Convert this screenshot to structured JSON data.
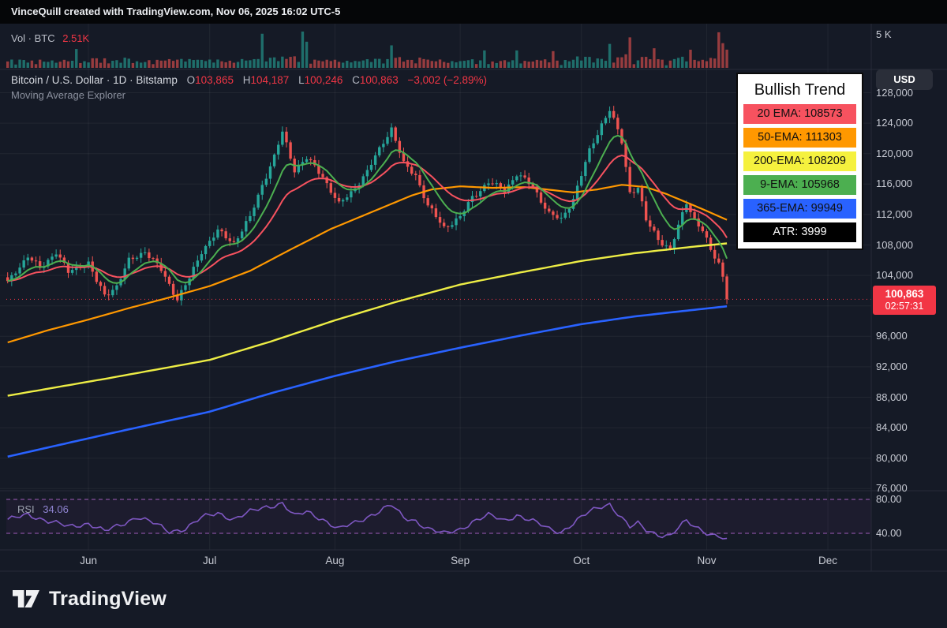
{
  "topbar": {
    "text": "VinceQuill created with TradingView.com, Nov 06, 2025 16:02 UTC-5"
  },
  "symbol_line": {
    "name": "Bitcoin / U.S. Dollar",
    "sep": "·",
    "interval": "1D",
    "exchange": "Bitstamp",
    "o_label": "O",
    "o": "103,865",
    "h_label": "H",
    "h": "104,187",
    "l_label": "L",
    "l": "100,246",
    "c_label": "C",
    "c": "100,863",
    "change": "−3,002 (−2.89%)"
  },
  "indicator_line": "Moving Average Explorer",
  "volume_pane": {
    "label": "Vol · BTC",
    "value": "2.51K",
    "axis_label": "5 K"
  },
  "rsi_pane": {
    "label": "RSI",
    "value": "34.06",
    "upper_label": "80.00",
    "lower_label": "40.00",
    "upper": 80,
    "lower": 40
  },
  "legend": {
    "title": "Bullish Trend",
    "rows": [
      {
        "label": "20 EMA: 108573",
        "bg": "#f7525f",
        "fg": "#101010"
      },
      {
        "label": "50-EMA: 111303",
        "bg": "#ff9800",
        "fg": "#101010"
      },
      {
        "label": "200-EMA: 108209",
        "bg": "#f5f13e",
        "fg": "#101010"
      },
      {
        "label": "9-EMA: 105968",
        "bg": "#4caf50",
        "fg": "#101010"
      },
      {
        "label": "365-EMA: 99949",
        "bg": "#2962ff",
        "fg": "#101010"
      },
      {
        "label": "ATR: 3999",
        "bg": "#000000",
        "fg": "#ffffff"
      }
    ]
  },
  "price_axis": {
    "currency": "USD",
    "labels": [
      {
        "text": "128,000",
        "price": 128000
      },
      {
        "text": "124,000",
        "price": 124000
      },
      {
        "text": "120,000",
        "price": 120000
      },
      {
        "text": "116,000",
        "price": 116000
      },
      {
        "text": "112,000",
        "price": 112000
      },
      {
        "text": "108,000",
        "price": 108000
      },
      {
        "text": "104,000",
        "price": 104000
      },
      {
        "text": "96,000",
        "price": 96000
      },
      {
        "text": "92,000",
        "price": 92000
      },
      {
        "text": "88,000",
        "price": 88000
      },
      {
        "text": "84,000",
        "price": 84000
      },
      {
        "text": "80,000",
        "price": 80000
      },
      {
        "text": "76,000",
        "price": 76000
      }
    ],
    "badge": {
      "price": "100,863",
      "countdown": "02:57:31"
    }
  },
  "time_axis": {
    "months": [
      {
        "label": "Jun",
        "day": 20
      },
      {
        "label": "Jul",
        "day": 50
      },
      {
        "label": "Aug",
        "day": 81
      },
      {
        "label": "Sep",
        "day": 112
      },
      {
        "label": "Oct",
        "day": 142
      },
      {
        "label": "Nov",
        "day": 173
      },
      {
        "label": "Dec",
        "day": 203
      }
    ]
  },
  "logo": {
    "text": "TradingView"
  },
  "colors": {
    "up": "#26a69a",
    "down": "#ef5350",
    "vol_up": "rgba(38,166,154,0.6)",
    "vol_down": "rgba(239,83,80,0.6)",
    "ema9": "#4caf50",
    "ema20": "#f7525f",
    "ema50": "#ff9800",
    "ema200": "#eded45",
    "ema365": "#2962ff",
    "rsi": "#7e57c2",
    "rsi_band": "#b064c9",
    "rsi_fill": "rgba(171,71,188,0.06)",
    "grid": "rgba(255,255,255,0.055)",
    "separator": "#262b38",
    "current_price_line": "#f23645",
    "badge": "#f23645"
  },
  "chart_data": {
    "type": "candlestick",
    "symbol": "Bitcoin / U.S. Dollar",
    "interval": "1D",
    "num_days": 179,
    "last_candle": {
      "open": 103865,
      "high": 104187,
      "low": 100246,
      "close": 100863
    },
    "close_anchors": [
      [
        0,
        103000
      ],
      [
        2,
        104600
      ],
      [
        5,
        106500
      ],
      [
        8,
        104900
      ],
      [
        12,
        107100
      ],
      [
        15,
        104400
      ],
      [
        18,
        105300
      ],
      [
        20,
        105600
      ],
      [
        22,
        103200
      ],
      [
        24,
        101400
      ],
      [
        27,
        102600
      ],
      [
        30,
        105900
      ],
      [
        34,
        107200
      ],
      [
        38,
        104700
      ],
      [
        42,
        100900
      ],
      [
        45,
        103600
      ],
      [
        48,
        107200
      ],
      [
        52,
        109800
      ],
      [
        56,
        108300
      ],
      [
        60,
        111600
      ],
      [
        63,
        115900
      ],
      [
        66,
        119600
      ],
      [
        68,
        122800
      ],
      [
        71,
        117900
      ],
      [
        74,
        119400
      ],
      [
        78,
        117000
      ],
      [
        82,
        113300
      ],
      [
        85,
        114900
      ],
      [
        89,
        117600
      ],
      [
        93,
        121600
      ],
      [
        95,
        123300
      ],
      [
        98,
        118600
      ],
      [
        101,
        117200
      ],
      [
        104,
        113100
      ],
      [
        108,
        110300
      ],
      [
        112,
        111600
      ],
      [
        115,
        114300
      ],
      [
        119,
        116200
      ],
      [
        123,
        115200
      ],
      [
        126,
        117300
      ],
      [
        130,
        115700
      ],
      [
        134,
        112100
      ],
      [
        137,
        111300
      ],
      [
        140,
        114100
      ],
      [
        144,
        120300
      ],
      [
        147,
        123900
      ],
      [
        149,
        125800
      ],
      [
        152,
        121500
      ],
      [
        154,
        114900
      ],
      [
        156,
        115600
      ],
      [
        158,
        111200
      ],
      [
        161,
        108800
      ],
      [
        164,
        107400
      ],
      [
        166,
        110400
      ],
      [
        168,
        113600
      ],
      [
        170,
        111400
      ],
      [
        172,
        109900
      ],
      [
        174,
        107200
      ],
      [
        176,
        105600
      ],
      [
        177,
        103900
      ],
      [
        178,
        100863
      ]
    ],
    "ema_final_values": {
      "ema9": 105968,
      "ema20": 108573,
      "ema50": 111303,
      "ema200": 108209,
      "ema365": 99949,
      "atr": 3999
    },
    "ema50_anchors": [
      [
        0,
        95200
      ],
      [
        10,
        96800
      ],
      [
        20,
        98200
      ],
      [
        30,
        99700
      ],
      [
        40,
        101100
      ],
      [
        50,
        102600
      ],
      [
        60,
        104600
      ],
      [
        70,
        107400
      ],
      [
        80,
        110100
      ],
      [
        90,
        112300
      ],
      [
        95,
        113400
      ],
      [
        100,
        114500
      ],
      [
        105,
        115300
      ],
      [
        112,
        115700
      ],
      [
        120,
        115500
      ],
      [
        128,
        115600
      ],
      [
        135,
        115200
      ],
      [
        140,
        114900
      ],
      [
        146,
        115300
      ],
      [
        152,
        115900
      ],
      [
        158,
        115600
      ],
      [
        163,
        114700
      ],
      [
        168,
        113600
      ],
      [
        172,
        112700
      ],
      [
        175,
        112000
      ],
      [
        178,
        111303
      ]
    ],
    "ema200_anchors": [
      [
        0,
        88200
      ],
      [
        25,
        90500
      ],
      [
        50,
        92900
      ],
      [
        65,
        95300
      ],
      [
        81,
        98100
      ],
      [
        96,
        100500
      ],
      [
        112,
        102800
      ],
      [
        127,
        104400
      ],
      [
        142,
        105900
      ],
      [
        155,
        106900
      ],
      [
        165,
        107500
      ],
      [
        172,
        107900
      ],
      [
        178,
        108209
      ]
    ],
    "ema365_anchors": [
      [
        0,
        80200
      ],
      [
        25,
        83200
      ],
      [
        50,
        86100
      ],
      [
        65,
        88500
      ],
      [
        81,
        90800
      ],
      [
        96,
        92700
      ],
      [
        112,
        94500
      ],
      [
        127,
        96100
      ],
      [
        142,
        97600
      ],
      [
        155,
        98600
      ],
      [
        165,
        99200
      ],
      [
        172,
        99600
      ],
      [
        178,
        99949
      ]
    ],
    "rsi_anchors": [
      [
        0,
        55
      ],
      [
        5,
        63
      ],
      [
        10,
        54
      ],
      [
        15,
        48
      ],
      [
        20,
        52
      ],
      [
        24,
        42
      ],
      [
        28,
        50
      ],
      [
        32,
        60
      ],
      [
        36,
        52
      ],
      [
        40,
        42
      ],
      [
        44,
        46
      ],
      [
        48,
        58
      ],
      [
        52,
        64
      ],
      [
        56,
        57
      ],
      [
        60,
        65
      ],
      [
        64,
        71
      ],
      [
        68,
        76
      ],
      [
        71,
        60
      ],
      [
        74,
        65
      ],
      [
        78,
        57
      ],
      [
        82,
        45
      ],
      [
        86,
        52
      ],
      [
        90,
        62
      ],
      [
        93,
        69
      ],
      [
        95,
        73
      ],
      [
        98,
        58
      ],
      [
        101,
        55
      ],
      [
        104,
        46
      ],
      [
        108,
        39
      ],
      [
        112,
        45
      ],
      [
        115,
        54
      ],
      [
        119,
        61
      ],
      [
        123,
        55
      ],
      [
        126,
        62
      ],
      [
        130,
        54
      ],
      [
        134,
        45
      ],
      [
        137,
        42
      ],
      [
        140,
        52
      ],
      [
        144,
        65
      ],
      [
        147,
        72
      ],
      [
        149,
        75
      ],
      [
        152,
        58
      ],
      [
        154,
        47
      ],
      [
        156,
        51
      ],
      [
        158,
        44
      ],
      [
        161,
        39
      ],
      [
        164,
        37
      ],
      [
        166,
        46
      ],
      [
        168,
        54
      ],
      [
        170,
        48
      ],
      [
        172,
        44
      ],
      [
        174,
        39
      ],
      [
        176,
        37
      ],
      [
        177,
        34
      ],
      [
        178,
        34.06
      ]
    ],
    "rsi_current": 34.06,
    "rsi_bands": [
      80,
      40
    ],
    "volume_current_k": 2.51,
    "volume_axis_max_k": 5,
    "volume_spikes_k": {
      "17": 2.6,
      "63": 4.7,
      "73": 5.0,
      "74": 3.6,
      "95": 3.1,
      "118": 2.4,
      "126": 2.4,
      "135": 2.3,
      "149": 3.3,
      "154": 4.2,
      "160": 2.7,
      "169": 2.5,
      "176": 4.9,
      "177": 3.4,
      "178": 2.51
    },
    "price_axis_visible_range": [
      75500,
      131000
    ]
  }
}
